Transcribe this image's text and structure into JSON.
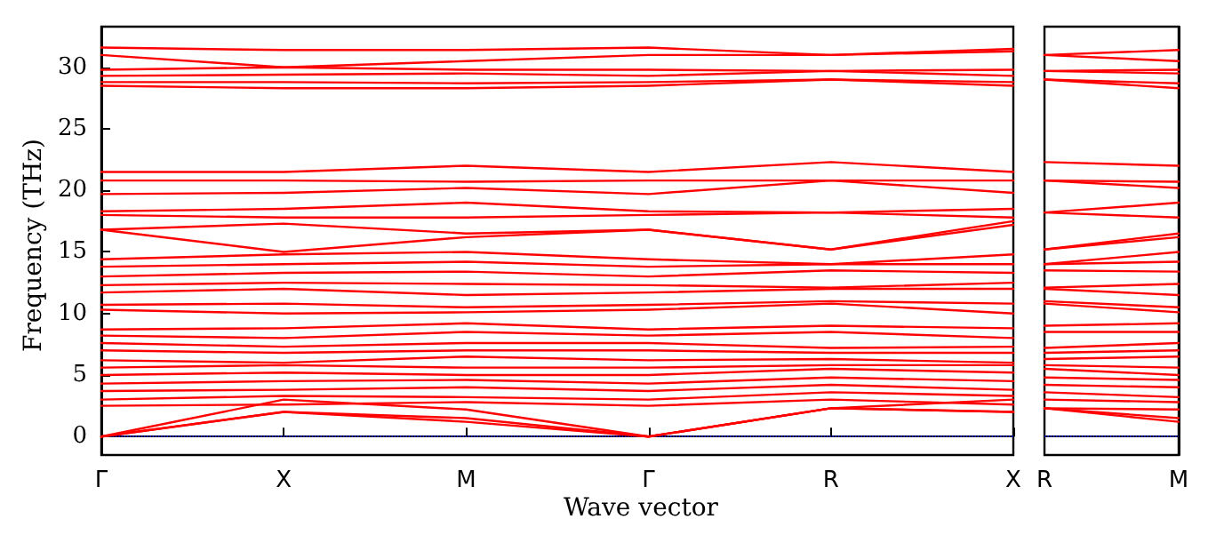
{
  "chart_data": [
    {
      "type": "line",
      "xlabel": "Wave vector",
      "ylabel": "Frequency (THz)",
      "categories": [
        "Γ",
        "X",
        "M",
        "Γ",
        "R",
        "X"
      ],
      "ylim": [
        -1.5,
        33.3
      ],
      "yticks": [
        0,
        5,
        10,
        15,
        20,
        25,
        30
      ],
      "marker": "none",
      "line_style": "solid",
      "ref_lines": [
        {
          "axis": "y",
          "value": 0,
          "color": "#0000ff",
          "line_style": "dotted"
        }
      ],
      "series": [
        {
          "color": "#ff0000",
          "values": [
            0,
            2.0,
            1.2,
            0,
            2.3,
            2.0
          ]
        },
        {
          "color": "#ff0000",
          "values": [
            0,
            2.0,
            1.5,
            0,
            2.3,
            2.0
          ]
        },
        {
          "color": "#ff0000",
          "values": [
            0,
            3.0,
            2.2,
            0,
            2.3,
            3.0
          ]
        },
        {
          "color": "#ff0000",
          "values": [
            2.5,
            2.6,
            2.8,
            2.5,
            3.0,
            2.6
          ]
        },
        {
          "color": "#ff0000",
          "values": [
            3.0,
            3.3,
            3.2,
            3.0,
            3.6,
            3.3
          ]
        },
        {
          "color": "#ff0000",
          "values": [
            3.7,
            3.8,
            4.0,
            3.7,
            4.2,
            3.8
          ]
        },
        {
          "color": "#ff0000",
          "values": [
            4.3,
            4.5,
            4.6,
            4.3,
            4.8,
            4.5
          ]
        },
        {
          "color": "#ff0000",
          "values": [
            5.0,
            5.2,
            5.0,
            5.0,
            5.5,
            5.2
          ]
        },
        {
          "color": "#ff0000",
          "values": [
            5.6,
            5.8,
            5.6,
            5.6,
            5.8,
            5.8
          ]
        },
        {
          "color": "#ff0000",
          "values": [
            6.2,
            6.0,
            6.5,
            6.2,
            6.3,
            6.0
          ]
        },
        {
          "color": "#ff0000",
          "values": [
            7.0,
            6.8,
            7.0,
            7.0,
            6.8,
            6.8
          ]
        },
        {
          "color": "#ff0000",
          "values": [
            7.6,
            7.3,
            7.6,
            7.6,
            7.2,
            7.3
          ]
        },
        {
          "color": "#ff0000",
          "values": [
            8.2,
            8.0,
            8.5,
            8.2,
            8.5,
            8.0
          ]
        },
        {
          "color": "#ff0000",
          "values": [
            8.7,
            8.8,
            9.2,
            8.7,
            9.0,
            8.8
          ]
        },
        {
          "color": "#ff0000",
          "values": [
            10.3,
            10.0,
            10.1,
            10.3,
            10.8,
            10.0
          ]
        },
        {
          "color": "#ff0000",
          "values": [
            10.7,
            10.8,
            10.5,
            10.7,
            11.0,
            10.8
          ]
        },
        {
          "color": "#ff0000",
          "values": [
            11.7,
            12.0,
            11.5,
            11.7,
            12.0,
            12.0
          ]
        },
        {
          "color": "#ff0000",
          "values": [
            12.3,
            12.5,
            12.4,
            12.3,
            12.1,
            12.5
          ]
        },
        {
          "color": "#ff0000",
          "values": [
            13.0,
            13.3,
            13.4,
            13.0,
            13.5,
            13.3
          ]
        },
        {
          "color": "#ff0000",
          "values": [
            13.8,
            14.0,
            14.2,
            13.8,
            14.0,
            14.0
          ]
        },
        {
          "color": "#ff0000",
          "values": [
            14.4,
            14.8,
            15.0,
            14.4,
            14.0,
            14.8
          ]
        },
        {
          "color": "#ff0000",
          "values": [
            16.8,
            15.0,
            16.2,
            16.8,
            15.2,
            17.2
          ]
        },
        {
          "color": "#ff0000",
          "values": [
            16.8,
            17.3,
            16.5,
            16.8,
            15.2,
            17.5
          ]
        },
        {
          "color": "#ff0000",
          "values": [
            18.0,
            17.8,
            17.8,
            18.0,
            18.2,
            17.8
          ]
        },
        {
          "color": "#ff0000",
          "values": [
            18.3,
            18.5,
            19.0,
            18.3,
            18.2,
            18.5
          ]
        },
        {
          "color": "#ff0000",
          "values": [
            19.7,
            19.8,
            20.2,
            19.7,
            20.8,
            19.8
          ]
        },
        {
          "color": "#ff0000",
          "values": [
            20.8,
            20.8,
            20.7,
            20.8,
            20.8,
            20.8
          ]
        },
        {
          "color": "#ff0000",
          "values": [
            21.5,
            21.5,
            22.0,
            21.5,
            22.3,
            21.5
          ]
        },
        {
          "color": "#ff0000",
          "values": [
            28.5,
            28.3,
            28.3,
            28.5,
            29.0,
            28.5
          ]
        },
        {
          "color": "#ff0000",
          "values": [
            28.8,
            28.8,
            28.7,
            28.8,
            29.0,
            28.8
          ]
        },
        {
          "color": "#ff0000",
          "values": [
            29.3,
            29.4,
            29.5,
            29.3,
            29.7,
            29.3
          ]
        },
        {
          "color": "#ff0000",
          "values": [
            29.8,
            30.0,
            29.8,
            29.8,
            29.7,
            29.8
          ]
        },
        {
          "color": "#ff0000",
          "values": [
            31.0,
            30.0,
            30.5,
            31.0,
            31.0,
            31.3
          ]
        },
        {
          "color": "#ff0000",
          "values": [
            31.6,
            31.4,
            31.4,
            31.6,
            31.0,
            31.5
          ]
        }
      ]
    },
    {
      "type": "line",
      "categories": [
        "R",
        "M"
      ],
      "ylim": [
        -1.5,
        33.3
      ],
      "yticks": [
        0,
        5,
        10,
        15,
        20,
        25,
        30
      ],
      "tick_labels": "x",
      "marker": "none",
      "line_style": "solid",
      "ref_lines": [
        {
          "axis": "y",
          "value": 0,
          "color": "#0000ff",
          "line_style": "dotted"
        }
      ],
      "series": [
        {
          "color": "#ff0000",
          "values": [
            2.3,
            1.2
          ]
        },
        {
          "color": "#ff0000",
          "values": [
            2.3,
            1.5
          ]
        },
        {
          "color": "#ff0000",
          "values": [
            2.3,
            2.2
          ]
        },
        {
          "color": "#ff0000",
          "values": [
            3.0,
            2.8
          ]
        },
        {
          "color": "#ff0000",
          "values": [
            3.6,
            3.2
          ]
        },
        {
          "color": "#ff0000",
          "values": [
            4.2,
            4.0
          ]
        },
        {
          "color": "#ff0000",
          "values": [
            4.8,
            4.6
          ]
        },
        {
          "color": "#ff0000",
          "values": [
            5.5,
            5.0
          ]
        },
        {
          "color": "#ff0000",
          "values": [
            5.8,
            5.6
          ]
        },
        {
          "color": "#ff0000",
          "values": [
            6.3,
            6.5
          ]
        },
        {
          "color": "#ff0000",
          "values": [
            6.8,
            7.0
          ]
        },
        {
          "color": "#ff0000",
          "values": [
            7.2,
            7.6
          ]
        },
        {
          "color": "#ff0000",
          "values": [
            8.5,
            8.5
          ]
        },
        {
          "color": "#ff0000",
          "values": [
            9.0,
            9.2
          ]
        },
        {
          "color": "#ff0000",
          "values": [
            10.8,
            10.1
          ]
        },
        {
          "color": "#ff0000",
          "values": [
            11.0,
            10.5
          ]
        },
        {
          "color": "#ff0000",
          "values": [
            12.0,
            11.5
          ]
        },
        {
          "color": "#ff0000",
          "values": [
            12.1,
            12.4
          ]
        },
        {
          "color": "#ff0000",
          "values": [
            13.5,
            13.4
          ]
        },
        {
          "color": "#ff0000",
          "values": [
            14.0,
            14.2
          ]
        },
        {
          "color": "#ff0000",
          "values": [
            14.0,
            15.0
          ]
        },
        {
          "color": "#ff0000",
          "values": [
            15.2,
            16.2
          ]
        },
        {
          "color": "#ff0000",
          "values": [
            15.2,
            16.5
          ]
        },
        {
          "color": "#ff0000",
          "values": [
            18.2,
            17.8
          ]
        },
        {
          "color": "#ff0000",
          "values": [
            18.2,
            19.0
          ]
        },
        {
          "color": "#ff0000",
          "values": [
            20.8,
            20.2
          ]
        },
        {
          "color": "#ff0000",
          "values": [
            20.8,
            20.7
          ]
        },
        {
          "color": "#ff0000",
          "values": [
            22.3,
            22.0
          ]
        },
        {
          "color": "#ff0000",
          "values": [
            29.0,
            28.3
          ]
        },
        {
          "color": "#ff0000",
          "values": [
            29.0,
            28.7
          ]
        },
        {
          "color": "#ff0000",
          "values": [
            29.7,
            29.5
          ]
        },
        {
          "color": "#ff0000",
          "values": [
            29.7,
            29.8
          ]
        },
        {
          "color": "#ff0000",
          "values": [
            31.0,
            30.5
          ]
        },
        {
          "color": "#ff0000",
          "values": [
            31.0,
            31.4
          ]
        }
      ]
    }
  ]
}
